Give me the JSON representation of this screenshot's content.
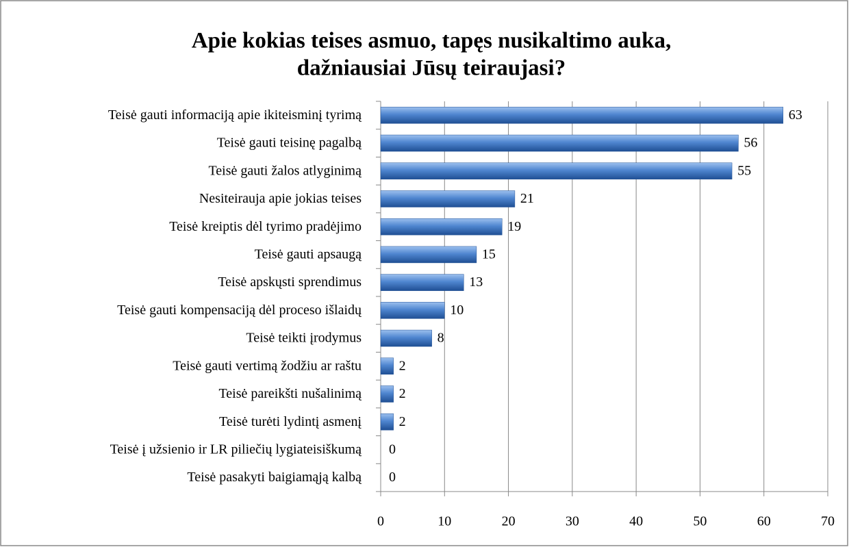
{
  "chart_data": {
    "type": "bar",
    "orientation": "horizontal",
    "title": [
      "Apie kokias teises asmuo, tapęs nusikaltimo auka,",
      "dažniausiai Jūsų teiraujasi?"
    ],
    "categories": [
      "Teisė gauti informaciją apie ikiteisminį tyrimą",
      "Teisė gauti teisinę pagalbą",
      "Teisė gauti žalos atlyginimą",
      "Nesiteirauja apie jokias teises",
      "Teisė kreiptis dėl tyrimo pradėjimo",
      "Teisė gauti apsaugą",
      "Teisė apskųsti sprendimus",
      "Teisė gauti kompensaciją dėl proceso išlaidų",
      "Teisė teikti įrodymus",
      "Teisė gauti vertimą žodžiu ar raštu",
      "Teisė pareikšti nušalinimą",
      "Teisė turėti lydintį asmenį",
      "Teisė į užsienio ir LR piliečių lygiateisiškumą",
      "Teisė pasakyti baigiamąją kalbą"
    ],
    "values": [
      63,
      56,
      55,
      21,
      19,
      15,
      13,
      10,
      8,
      2,
      2,
      2,
      0,
      0
    ],
    "color": "#3d74c0",
    "xlim": [
      0,
      70
    ],
    "xticks": [
      0,
      10,
      20,
      30,
      40,
      50,
      60,
      70
    ],
    "grid": true
  }
}
